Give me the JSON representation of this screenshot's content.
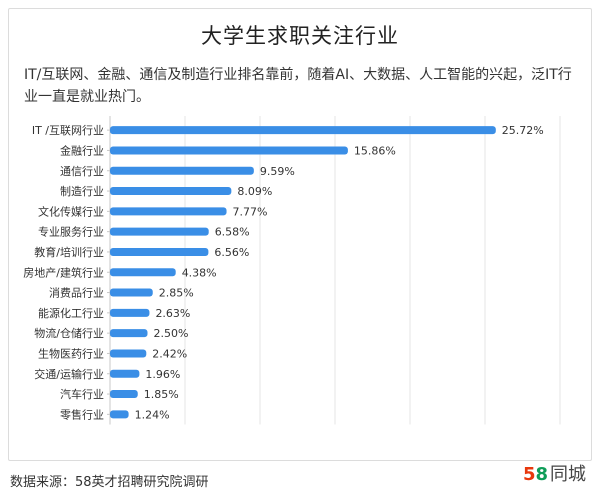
{
  "header": {
    "title": "大学生求职关注行业",
    "subtitle": "IT/互联网、金融、通信及制造行业排名靠前，随着AI、大数据、人工智能的兴起，泛IT行业一直是就业热门。"
  },
  "footer": {
    "source": "数据来源：58英才招聘研究院调研",
    "logo_digit_5": "5",
    "logo_digit_8": "8",
    "logo_text": "同城"
  },
  "colors": {
    "bar": "#3a8ee6",
    "grid": "#e6e6e6",
    "label": "#333333"
  },
  "chart_data": {
    "type": "bar",
    "orientation": "horizontal",
    "categories": [
      "IT /互联网行业",
      "金融行业",
      "通信行业",
      "制造行业",
      "文化传媒行业",
      "专业服务行业",
      "教育/培训行业",
      "房地产/建筑行业",
      "消费品行业",
      "能源化工行业",
      "物流/仓储行业",
      "生物医药行业",
      "交通/运输行业",
      "汽车行业",
      "零售行业"
    ],
    "values": [
      25.72,
      15.86,
      9.59,
      8.09,
      7.77,
      6.58,
      6.56,
      4.38,
      2.85,
      2.63,
      2.5,
      2.42,
      1.96,
      1.85,
      1.24
    ],
    "value_labels": [
      "25.72%",
      "15.86%",
      "9.59%",
      "8.09%",
      "7.77%",
      "6.58%",
      "6.56%",
      "4.38%",
      "2.85%",
      "2.63%",
      "2.50%",
      "2.42%",
      "1.96%",
      "1.85%",
      "1.24%"
    ],
    "xlim": [
      0,
      30
    ],
    "grid": true
  }
}
